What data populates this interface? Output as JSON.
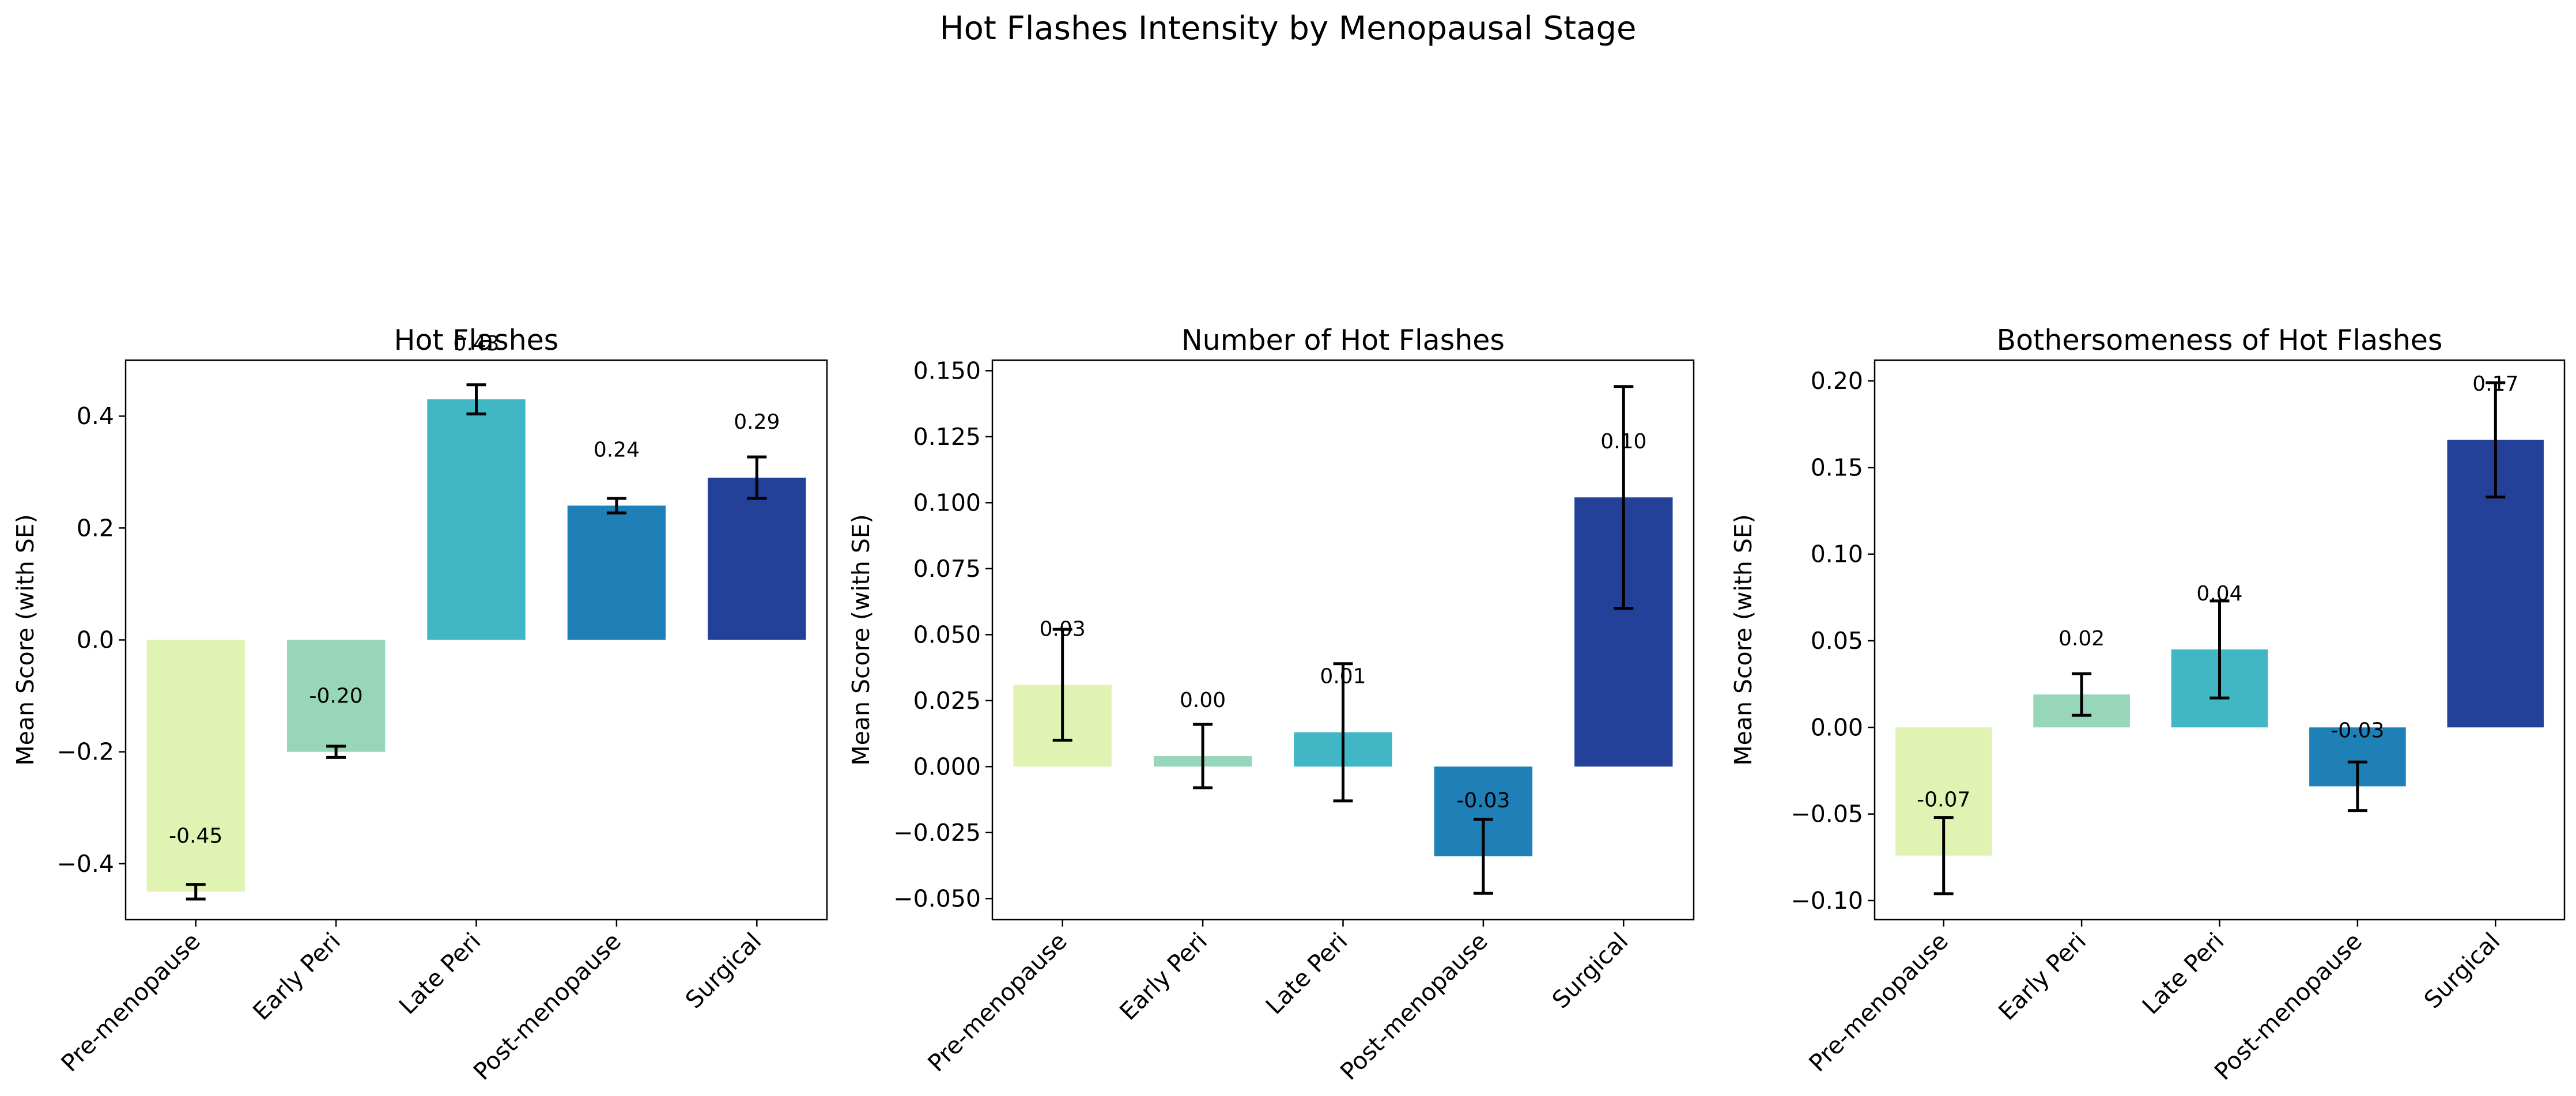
{
  "figure": {
    "title": "Hot Flashes Intensity by Menopausal Stage"
  },
  "chart_data": [
    {
      "type": "bar",
      "title": "Hot Flashes",
      "xlabel": "",
      "ylabel": "Mean Score (with SE)",
      "categories": [
        "Pre-menopause",
        "Early Peri",
        "Late Peri",
        "Post-menopause",
        "Surgical"
      ],
      "values": [
        -0.45,
        -0.2,
        0.43,
        0.24,
        0.29
      ],
      "errors": [
        0.013,
        0.01,
        0.026,
        0.013,
        0.037
      ],
      "value_labels": [
        "-0.45",
        "-0.20",
        "0.43",
        "0.24",
        "0.29"
      ],
      "ylim": [
        -0.5,
        0.5
      ],
      "yticks": [
        -0.4,
        -0.2,
        0.0,
        0.2,
        0.4
      ],
      "ytick_labels": [
        "−0.4",
        "−0.2",
        "0.0",
        "0.2",
        "0.4"
      ],
      "grid": false
    },
    {
      "type": "bar",
      "title": "Number of Hot Flashes",
      "xlabel": "",
      "ylabel": "Mean Score (with SE)",
      "categories": [
        "Pre-menopause",
        "Early Peri",
        "Late Peri",
        "Post-menopause",
        "Surgical"
      ],
      "values": [
        0.031,
        0.004,
        0.013,
        -0.034,
        0.102
      ],
      "errors": [
        0.021,
        0.012,
        0.026,
        0.014,
        0.042
      ],
      "value_labels": [
        "0.03",
        "0.00",
        "0.01",
        "-0.03",
        "0.10"
      ],
      "ylim": [
        -0.058,
        0.154
      ],
      "yticks": [
        -0.05,
        -0.025,
        0.0,
        0.025,
        0.05,
        0.075,
        0.1,
        0.125,
        0.15
      ],
      "ytick_labels": [
        "−0.050",
        "−0.025",
        "0.000",
        "0.025",
        "0.050",
        "0.075",
        "0.100",
        "0.125",
        "0.150"
      ],
      "grid": false
    },
    {
      "type": "bar",
      "title": "Bothersomeness of Hot Flashes",
      "xlabel": "",
      "ylabel": "Mean Score (with SE)",
      "categories": [
        "Pre-menopause",
        "Early Peri",
        "Late Peri",
        "Post-menopause",
        "Surgical"
      ],
      "values": [
        -0.074,
        0.019,
        0.045,
        -0.034,
        0.166
      ],
      "errors": [
        0.022,
        0.012,
        0.028,
        0.014,
        0.033
      ],
      "value_labels": [
        "-0.07",
        "0.02",
        "0.04",
        "-0.03",
        "0.17"
      ],
      "ylim": [
        -0.111,
        0.212
      ],
      "yticks": [
        -0.1,
        -0.05,
        0.0,
        0.05,
        0.1,
        0.15,
        0.2
      ],
      "ytick_labels": [
        "−0.10",
        "−0.05",
        "0.00",
        "0.05",
        "0.10",
        "0.15",
        "0.20"
      ],
      "grid": false
    }
  ],
  "colors": {
    "bars": [
      "#e0f3b2",
      "#97d6b9",
      "#41b6c4",
      "#1f80b8",
      "#24419a"
    ],
    "error_bar": "#000000",
    "axes": "#000000"
  }
}
